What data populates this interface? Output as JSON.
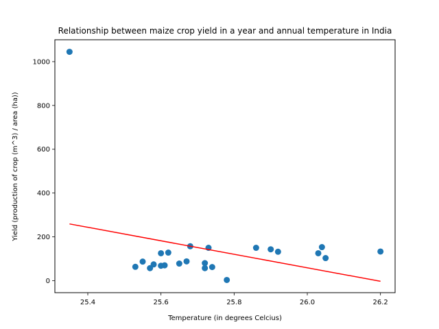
{
  "chart_data": {
    "type": "scatter",
    "title": "Relationship between maize crop yield in a year and annual temperature in India",
    "xlabel": "Temperature (in degrees Celcius)",
    "ylabel": "Yield (production of crop (m^3) / area (ha))",
    "xlim": [
      25.31,
      26.24
    ],
    "ylim": [
      -55,
      1100
    ],
    "xticks": [
      25.4,
      25.6,
      25.8,
      26.0,
      26.2
    ],
    "xtick_labels": [
      "25.4",
      "25.6",
      "25.8",
      "26.0",
      "26.2"
    ],
    "yticks": [
      0,
      200,
      400,
      600,
      800,
      1000
    ],
    "ytick_labels": [
      "0",
      "200",
      "400",
      "600",
      "800",
      "1000"
    ],
    "grid": false,
    "series": [
      {
        "type": "scatter",
        "color": "#1f77b4",
        "points": [
          {
            "x": 25.35,
            "y": 1045
          },
          {
            "x": 25.53,
            "y": 63
          },
          {
            "x": 25.55,
            "y": 87
          },
          {
            "x": 25.57,
            "y": 57
          },
          {
            "x": 25.58,
            "y": 74
          },
          {
            "x": 25.6,
            "y": 125
          },
          {
            "x": 25.6,
            "y": 68
          },
          {
            "x": 25.61,
            "y": 70
          },
          {
            "x": 25.62,
            "y": 128
          },
          {
            "x": 25.65,
            "y": 78
          },
          {
            "x": 25.67,
            "y": 88
          },
          {
            "x": 25.68,
            "y": 157
          },
          {
            "x": 25.72,
            "y": 80
          },
          {
            "x": 25.72,
            "y": 57
          },
          {
            "x": 25.73,
            "y": 150
          },
          {
            "x": 25.74,
            "y": 62
          },
          {
            "x": 25.78,
            "y": 3
          },
          {
            "x": 25.86,
            "y": 150
          },
          {
            "x": 25.9,
            "y": 143
          },
          {
            "x": 25.92,
            "y": 132
          },
          {
            "x": 26.03,
            "y": 125
          },
          {
            "x": 26.04,
            "y": 153
          },
          {
            "x": 26.05,
            "y": 103
          },
          {
            "x": 26.2,
            "y": 133
          }
        ]
      },
      {
        "type": "line",
        "color": "#ff0000",
        "points": [
          {
            "x": 25.35,
            "y": 259
          },
          {
            "x": 26.2,
            "y": -3
          }
        ]
      }
    ]
  }
}
